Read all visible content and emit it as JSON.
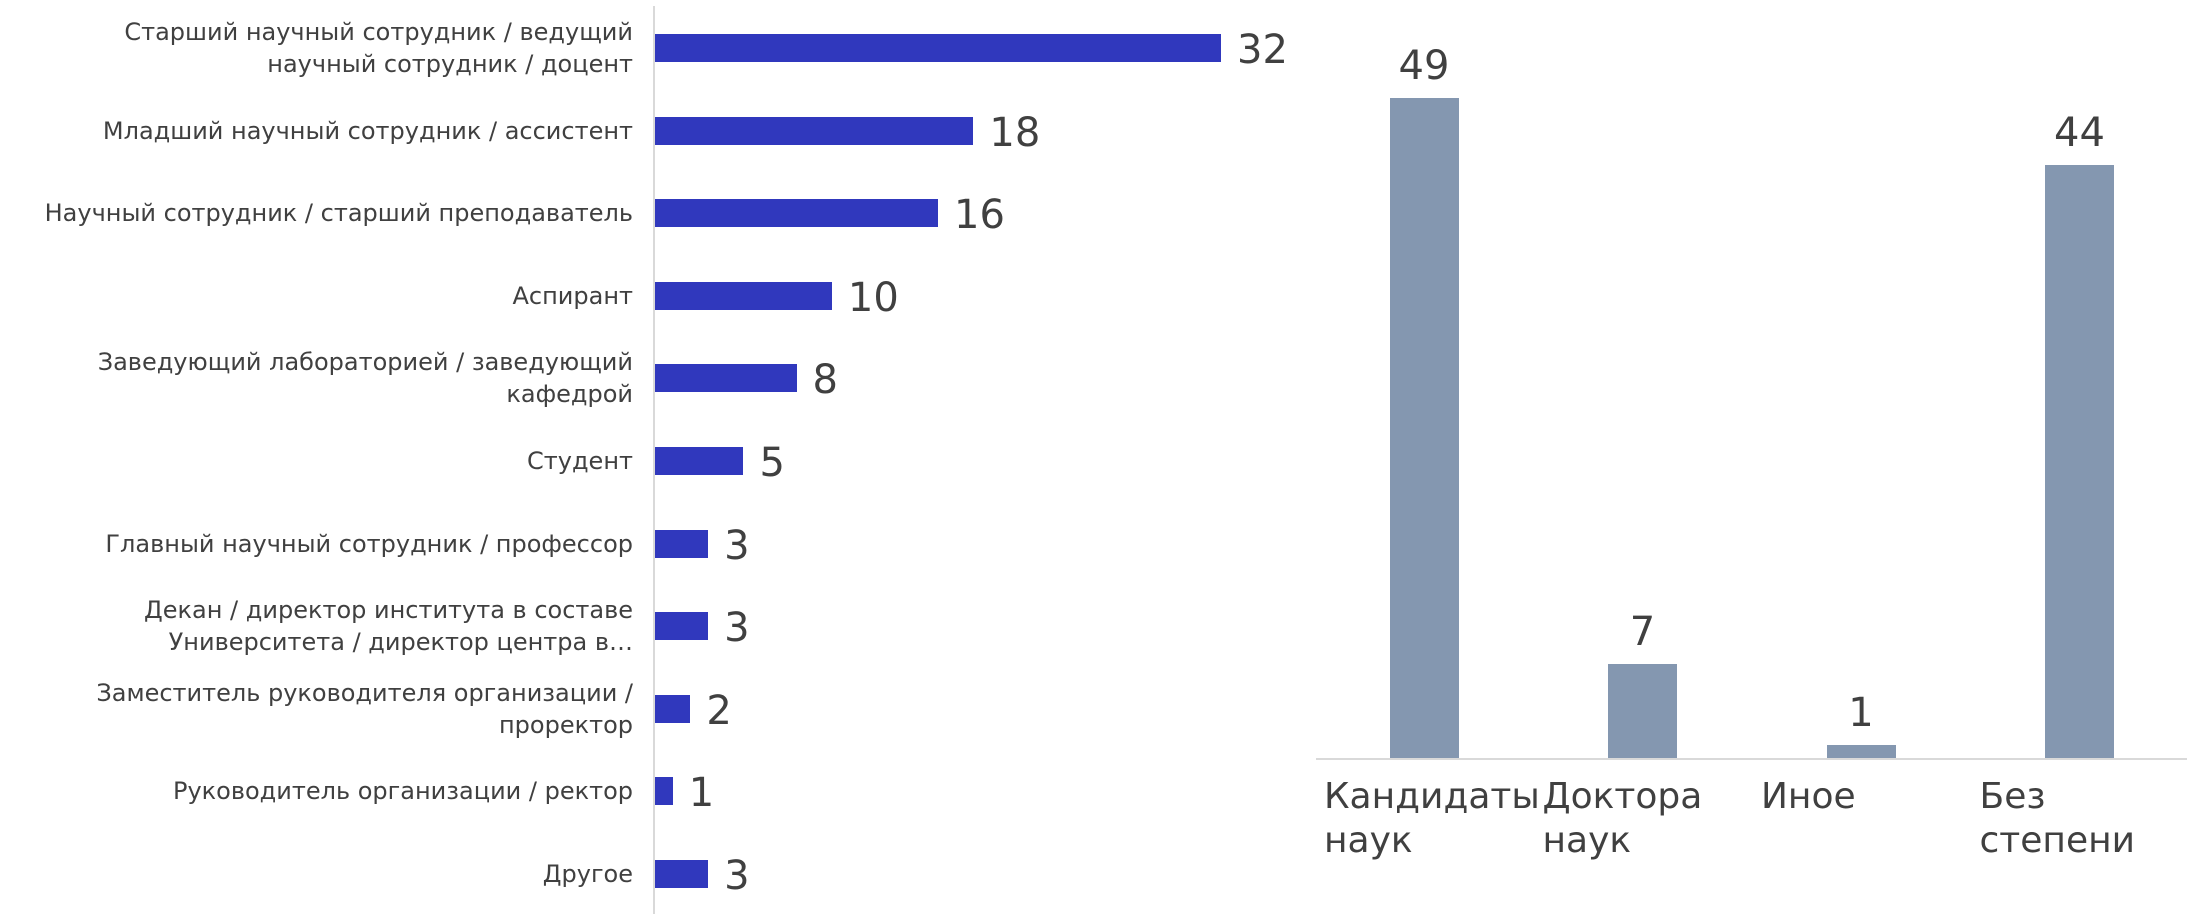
{
  "chart_data": [
    {
      "type": "hbar",
      "categories": [
        "Старший научный сотрудник / ведущий научный сотрудник / доцент",
        "Младший научный сотрудник / ассистент",
        "Научный сотрудник / старший преподаватель",
        "Аспирант",
        "Заведующий лабораторией / заведующий кафедрой",
        "Студент",
        "Главный научный сотрудник / профессор",
        "Декан / директор института в составе Университета / директор центра в…",
        "Заместитель руководителя организации / проректор",
        "Руководитель организации / ректор",
        "Другое"
      ],
      "values": [
        32,
        18,
        16,
        10,
        8,
        5,
        3,
        3,
        2,
        1,
        3
      ],
      "color": "#3038bd",
      "xlim": [
        0,
        32
      ]
    },
    {
      "type": "bar",
      "categories": [
        "Кандидаты наук",
        "Доктора наук",
        "Иное",
        "Без степени"
      ],
      "values": [
        49,
        7,
        1,
        44
      ],
      "color": "#8497b0",
      "ylim": [
        0,
        49
      ]
    }
  ]
}
